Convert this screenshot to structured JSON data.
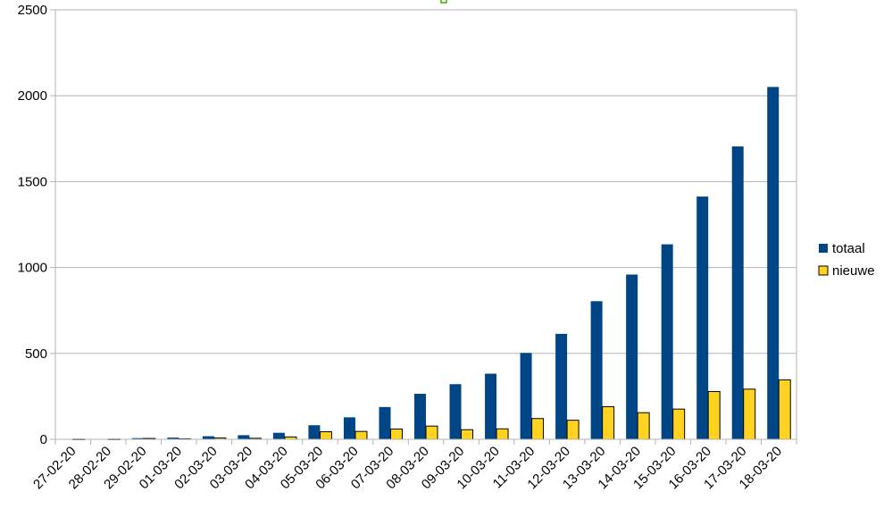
{
  "chart_data": {
    "type": "bar",
    "categories": [
      "27-02-20",
      "28-02-20",
      "29-02-20",
      "01-03-20",
      "02-03-20",
      "03-03-20",
      "04-03-20",
      "05-03-20",
      "06-03-20",
      "07-03-20",
      "08-03-20",
      "09-03-20",
      "10-03-20",
      "11-03-20",
      "12-03-20",
      "13-03-20",
      "14-03-20",
      "15-03-20",
      "16-03-20",
      "17-03-20",
      "18-03-20"
    ],
    "series": [
      {
        "name": "totaal",
        "color": "#004586",
        "values": [
          1,
          2,
          7,
          10,
          18,
          24,
          38,
          82,
          128,
          188,
          265,
          321,
          382,
          503,
          614,
          804,
          959,
          1135,
          1413,
          1705,
          2051
        ]
      },
      {
        "name": "nieuwe",
        "color": "#ffd320",
        "values": [
          1,
          1,
          5,
          3,
          8,
          6,
          14,
          44,
          46,
          60,
          77,
          56,
          61,
          121,
          111,
          190,
          155,
          176,
          278,
          292,
          346
        ]
      }
    ],
    "title": "",
    "xlabel": "",
    "ylabel": "",
    "ylim": [
      0,
      2500
    ],
    "yticks": [
      0,
      500,
      1000,
      1500,
      2000,
      2500
    ],
    "grid": true,
    "legend_position": "right"
  }
}
